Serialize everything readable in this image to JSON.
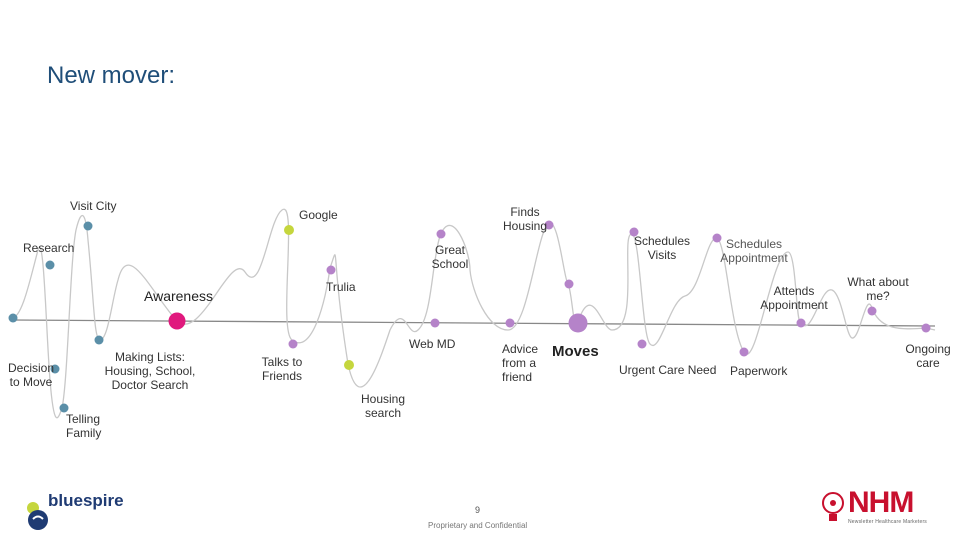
{
  "slide": {
    "title": "New mover:",
    "page_number": "9",
    "confidentiality": "Proprietary and Confidential"
  },
  "journey": {
    "labels": {
      "visit_city": "Visit City",
      "research": "Research",
      "decision_to_move_l1": "Decision",
      "decision_to_move_l2": "to Move",
      "telling_family_l1": "Telling",
      "telling_family_l2": "Family",
      "making_lists_l1": "Making Lists:",
      "making_lists_l2": "Housing, School,",
      "making_lists_l3": "Doctor Search",
      "awareness": "Awareness",
      "google": "Google",
      "talks_to_friends_l1": "Talks to",
      "talks_to_friends_l2": "Friends",
      "trulia": "Trulia",
      "great_school_l1": "Great",
      "great_school_l2": "School",
      "housing_search_l1": "Housing",
      "housing_search_l2": "search",
      "finds_housing_l1": "Finds",
      "finds_housing_l2": "Housing",
      "web_md": "Web MD",
      "advice_friend_l1": "Advice",
      "advice_friend_l2": "from a",
      "advice_friend_l3": "friend",
      "moves": "Moves",
      "schedules_visits_l1": "Schedules",
      "schedules_visits_l2": "Visits",
      "urgent_care_need": "Urgent Care Need",
      "schedules_appointment_l1": "Schedules",
      "schedules_appointment_l2": "Appointment",
      "attends_appointment_l1": "Attends",
      "attends_appointment_l2": "Appointment",
      "paperwork": "Paperwork",
      "what_about_me_l1": "What about",
      "what_about_me_l2": "me?",
      "ongoing_care_l1": "Ongoing",
      "ongoing_care_l2": "care"
    },
    "colors": {
      "path": "#c8c8c8",
      "axis": "#888888",
      "blue_dot": "#5b8fa8",
      "purple_dot": "#b583c9",
      "lime_dot": "#c5d63d",
      "magenta_dot": "#e0197d"
    }
  },
  "logos": {
    "left": "bluespire",
    "right": "NHM",
    "right_tagline": "Newsletter Healthcare Marketers"
  }
}
